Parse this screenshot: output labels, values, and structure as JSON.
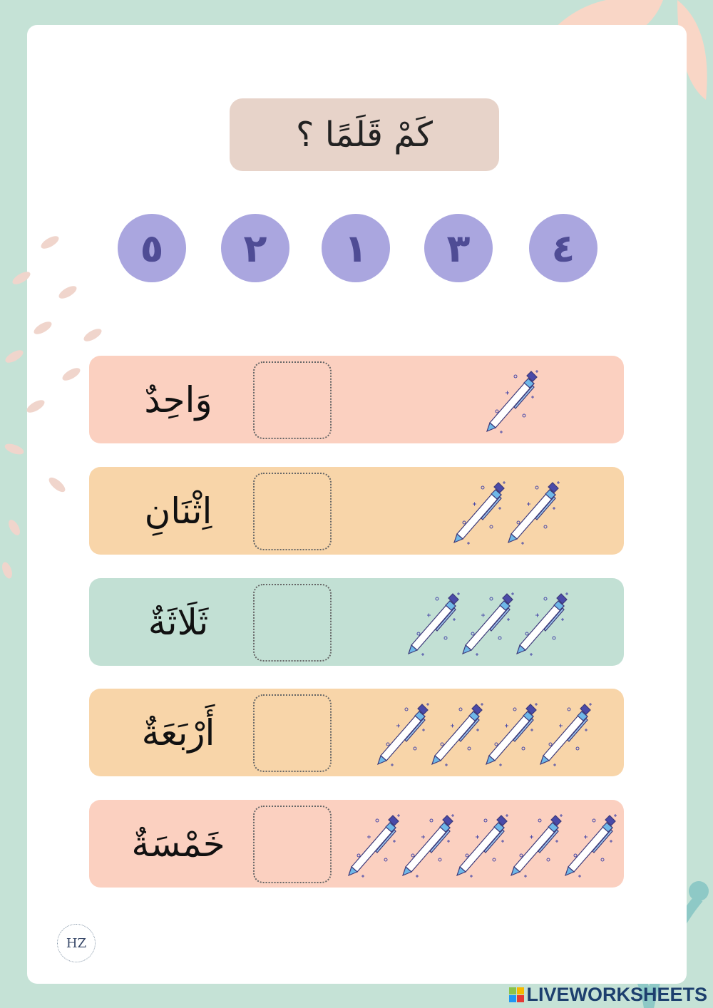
{
  "title": "كَمْ قَلَمًا ؟",
  "numbers": [
    "٥",
    "٢",
    "١",
    "٣",
    "٤"
  ],
  "rows": [
    {
      "word": "وَاحِدٌ",
      "pen_count": 1,
      "color": "#fbd0c0"
    },
    {
      "word": "اِثْنَانِ",
      "pen_count": 2,
      "color": "#f8d5a9"
    },
    {
      "word": "ثَلَاثَةٌ",
      "pen_count": 3,
      "color": "#c2e0d4"
    },
    {
      "word": "أَرْبَعَةٌ",
      "pen_count": 4,
      "color": "#f8d5a9"
    },
    {
      "word": "خَمْسَةٌ",
      "pen_count": 5,
      "color": "#fbd0c0"
    }
  ],
  "logo": "HZ",
  "watermark": "LIVEWORKSHEETS",
  "colors": {
    "background": "#c5e2d6",
    "circle": "#aaa6df",
    "numeral": "#4f4c95",
    "title_box": "#e7d3c9"
  }
}
